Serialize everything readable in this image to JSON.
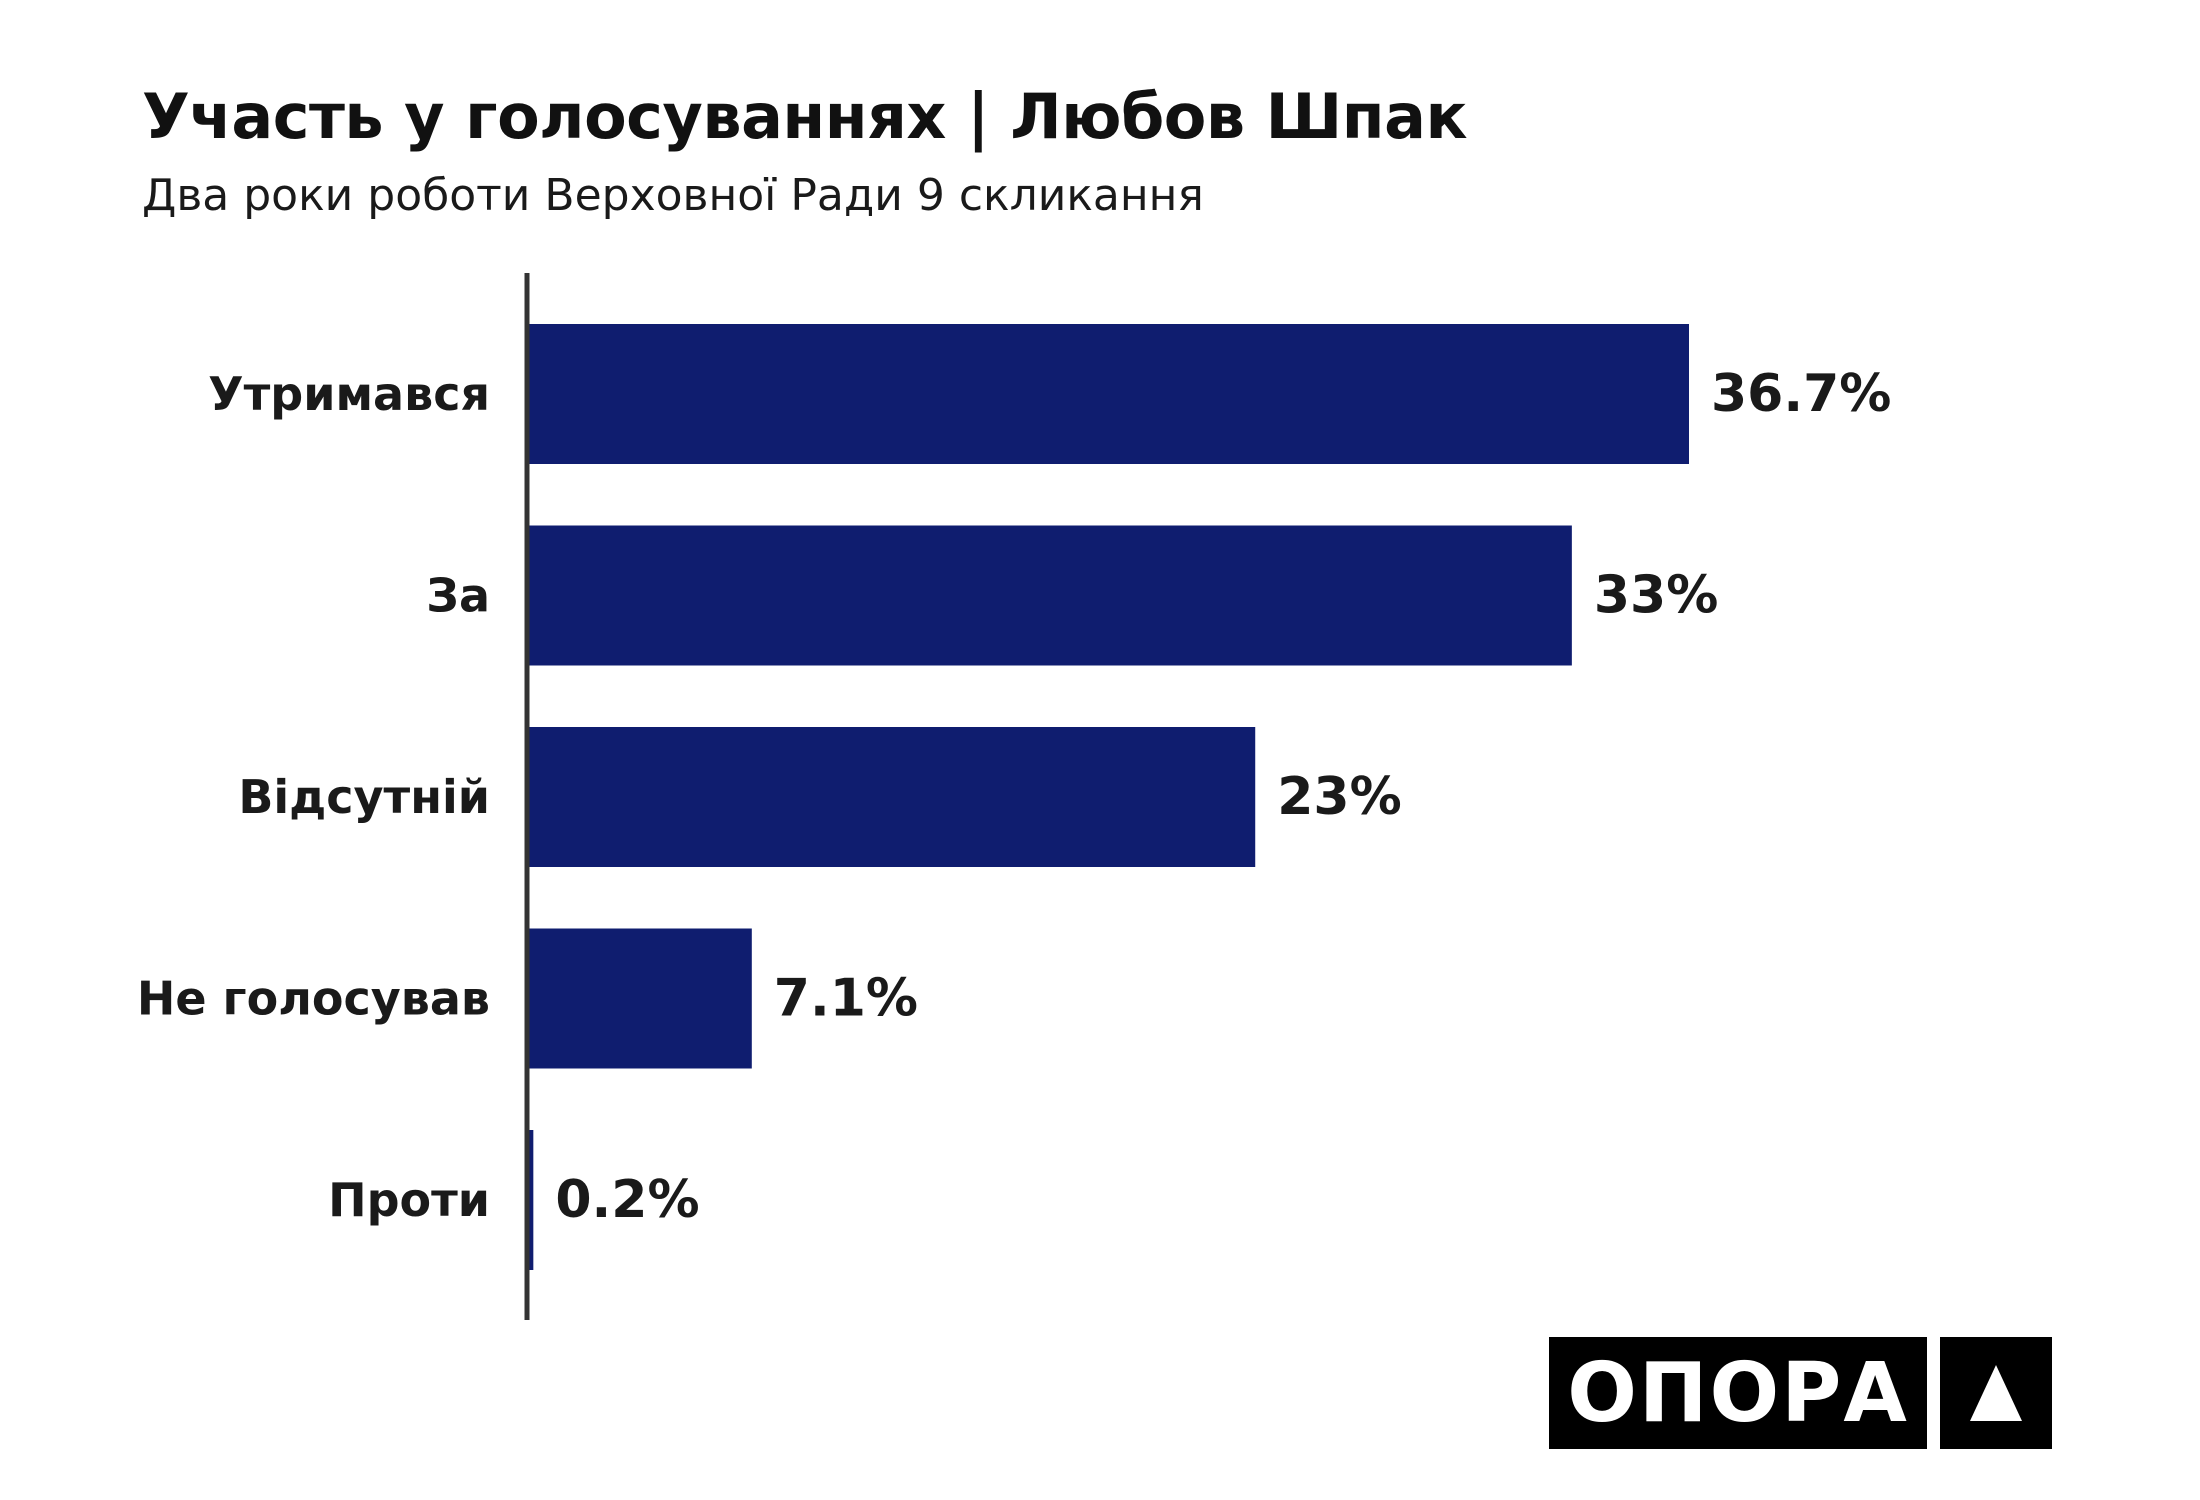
{
  "chart_data": {
    "type": "bar",
    "orientation": "horizontal",
    "title": "Участь у голосуваннях | Любов Шпак",
    "subtitle": "Два роки роботи Верховної Ради 9 скликання",
    "categories": [
      "Утримався",
      "За",
      "Відсутній",
      "Не голосував",
      "Проти"
    ],
    "values": [
      36.7,
      33,
      23,
      7.1,
      0.2
    ],
    "value_labels": [
      "36.7%",
      "33%",
      "23%",
      "7.1%",
      "0.2%"
    ],
    "xlabel": "",
    "ylabel": "",
    "xlim": [
      0,
      36.7
    ],
    "grid": false,
    "bar_color": "#0f1d6f",
    "axis_color": "#333333"
  },
  "brand": {
    "logo_text": "ОПОРА",
    "logo_icon": "triangle-icon",
    "logo_bg": "#000000",
    "logo_fg": "#ffffff"
  }
}
